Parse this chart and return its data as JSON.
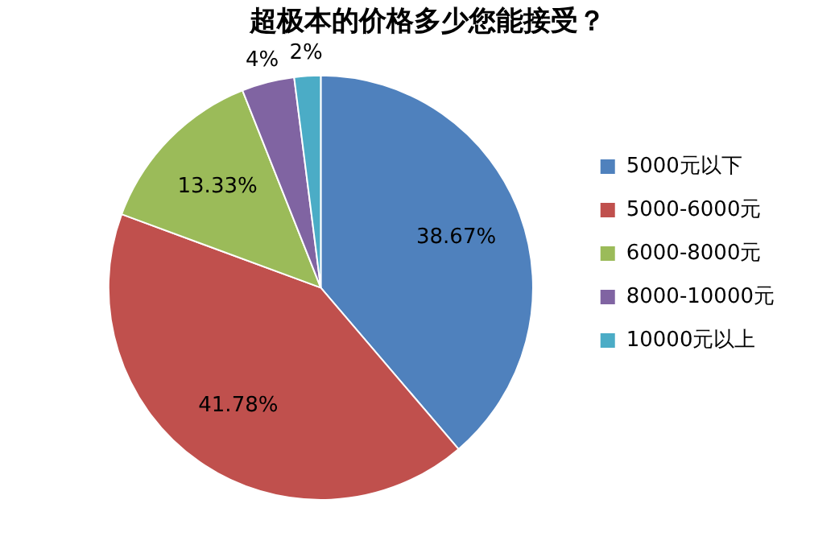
{
  "chart_data": {
    "type": "pie",
    "title": "超极本的价格多少您能接受？",
    "categories": [
      "5000元以下",
      "5000-6000元",
      "6000-8000元",
      "8000-10000元",
      "10000元以上"
    ],
    "values": [
      38.67,
      41.78,
      13.33,
      4,
      2
    ],
    "colors": [
      "#4f81bd",
      "#c0504d",
      "#9bbb59",
      "#8064a2",
      "#4bacc6"
    ],
    "value_labels": [
      "38.67%",
      "41.78%",
      "13.33%",
      "4%",
      "2%"
    ],
    "legend": "right"
  }
}
